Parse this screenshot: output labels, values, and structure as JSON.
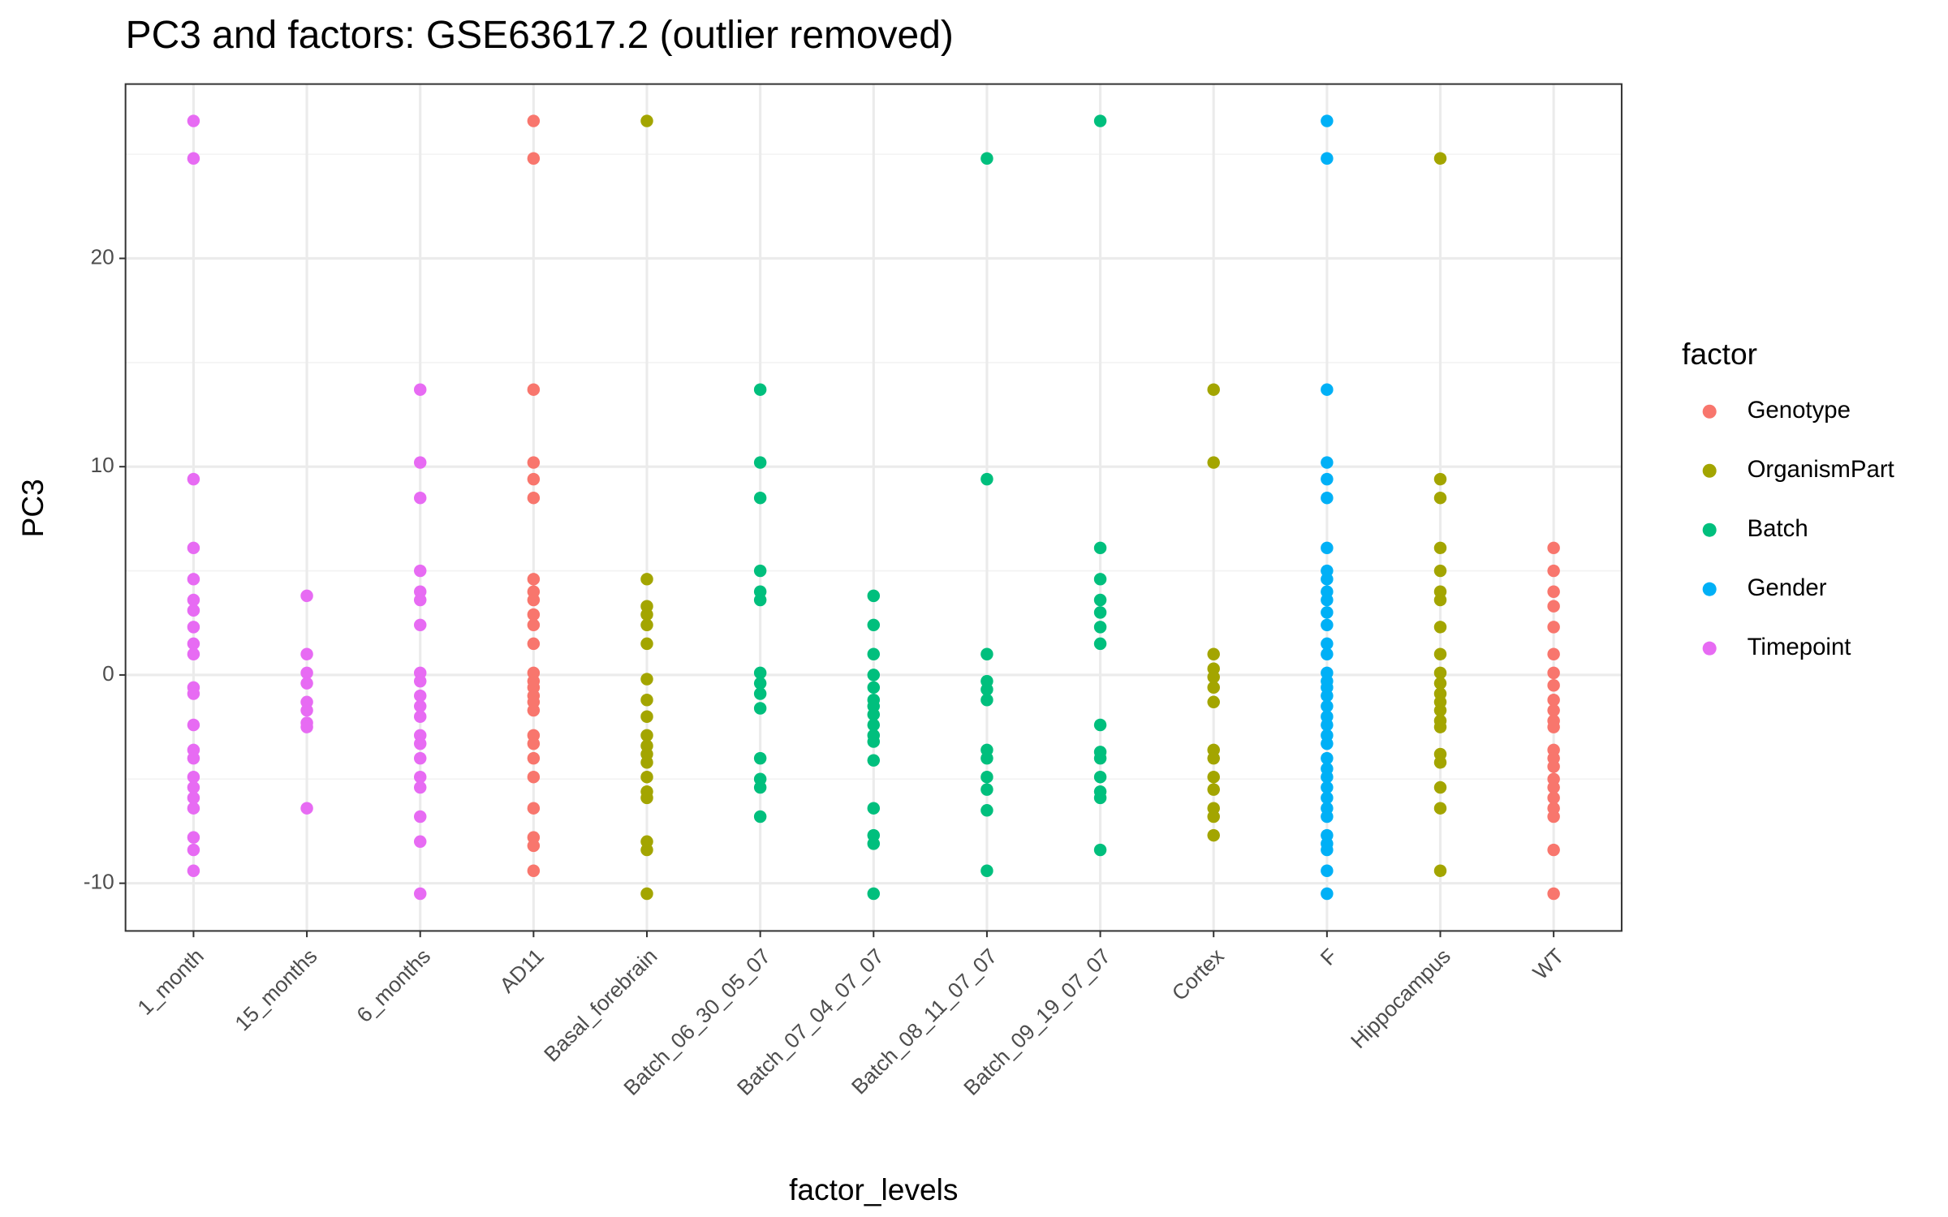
{
  "chart_data": {
    "type": "strip",
    "title": "PC3 and factors: GSE63617.2 (outlier removed)",
    "x_label": "factor_levels",
    "y_label": "PC3",
    "legend_title": "factor",
    "legend_position": "right",
    "grid": true,
    "categories": [
      "1_month",
      "15_months",
      "6_months",
      "AD11",
      "Basal_forebrain",
      "Batch_06_30_05_07",
      "Batch_07_04_07_07",
      "Batch_08_11_07_07",
      "Batch_09_19_07_07",
      "Cortex",
      "F",
      "Hippocampus",
      "WT"
    ],
    "ylim": [
      -12.29,
      28.37
    ],
    "yticks": [
      -10,
      0,
      10,
      20
    ],
    "y_minor_grid": [
      -5,
      5,
      15,
      25
    ],
    "series": [
      {
        "name": "Genotype",
        "color": "#f8766d",
        "categories": [
          "AD11",
          "WT"
        ],
        "values": [
          [
            26.6,
            24.8,
            13.7,
            10.2,
            9.4,
            8.5,
            4.6,
            4.0,
            3.6,
            2.9,
            2.4,
            1.5,
            0.1,
            -0.3,
            -0.6,
            -1.0,
            -1.3,
            -1.7,
            -2.9,
            -3.3,
            -4.0,
            -4.9,
            -6.4,
            -7.8,
            -8.2,
            -9.4
          ],
          [
            6.1,
            5.0,
            4.0,
            3.3,
            2.3,
            1.0,
            0.1,
            -0.5,
            -1.2,
            -1.7,
            -2.2,
            -2.5,
            -3.6,
            -4.0,
            -4.4,
            -5.0,
            -5.4,
            -5.9,
            -6.4,
            -6.8,
            -8.4,
            -10.5
          ]
        ]
      },
      {
        "name": "OrganismPart",
        "color": "#a3a500",
        "categories": [
          "Basal_forebrain",
          "Cortex",
          "Hippocampus"
        ],
        "values": [
          [
            26.6,
            4.6,
            3.3,
            2.9,
            2.4,
            1.5,
            -0.2,
            -1.2,
            -2.0,
            -2.9,
            -3.4,
            -3.8,
            -4.2,
            -4.9,
            -5.6,
            -5.9,
            -8.0,
            -8.4,
            -10.5
          ],
          [
            13.7,
            10.2,
            1.0,
            0.3,
            -0.1,
            -0.6,
            -1.3,
            -3.6,
            -4.0,
            -4.9,
            -5.5,
            -6.4,
            -6.8,
            -7.7
          ],
          [
            24.8,
            9.4,
            8.5,
            6.1,
            5.0,
            4.0,
            3.6,
            2.3,
            1.0,
            0.1,
            -0.4,
            -0.9,
            -1.3,
            -1.7,
            -2.2,
            -2.5,
            -3.8,
            -4.2,
            -5.4,
            -6.4,
            -9.4
          ]
        ]
      },
      {
        "name": "Batch",
        "color": "#00bf7d",
        "categories": [
          "Batch_06_30_05_07",
          "Batch_07_04_07_07",
          "Batch_08_11_07_07",
          "Batch_09_19_07_07"
        ],
        "values": [
          [
            13.7,
            10.2,
            8.5,
            5.0,
            4.0,
            3.6,
            0.1,
            -0.4,
            -0.9,
            -1.6,
            -4.0,
            -5.0,
            -5.4,
            -6.8
          ],
          [
            3.8,
            2.4,
            1.0,
            0.0,
            -0.6,
            -1.2,
            -1.5,
            -1.9,
            -2.4,
            -2.9,
            -3.2,
            -4.1,
            -6.4,
            -7.7,
            -8.1,
            -10.5
          ],
          [
            24.8,
            9.4,
            1.0,
            -0.3,
            -0.7,
            -1.2,
            -3.6,
            -4.0,
            -4.9,
            -5.5,
            -6.5,
            -9.4
          ],
          [
            26.6,
            6.1,
            4.6,
            3.6,
            3.0,
            2.3,
            1.5,
            -2.4,
            -3.7,
            -4.0,
            -4.9,
            -5.6,
            -5.9,
            -8.4
          ]
        ]
      },
      {
        "name": "Gender",
        "color": "#00b0f6",
        "categories": [
          "F"
        ],
        "values": [
          [
            26.6,
            24.8,
            13.7,
            10.2,
            9.4,
            8.5,
            6.1,
            5.0,
            4.6,
            4.0,
            3.6,
            3.0,
            2.4,
            1.5,
            1.0,
            0.1,
            -0.3,
            -0.6,
            -1.0,
            -1.5,
            -2.0,
            -2.4,
            -2.9,
            -3.3,
            -4.0,
            -4.5,
            -4.9,
            -5.4,
            -5.9,
            -6.4,
            -6.8,
            -7.7,
            -8.1,
            -8.4,
            -9.4,
            -10.5
          ]
        ]
      },
      {
        "name": "Timepoint",
        "color": "#e76bf3",
        "categories": [
          "1_month",
          "15_months",
          "6_months"
        ],
        "values": [
          [
            26.6,
            24.8,
            9.4,
            6.1,
            4.6,
            3.6,
            3.1,
            2.3,
            1.5,
            1.0,
            -0.6,
            -0.9,
            -2.4,
            -3.6,
            -4.0,
            -4.9,
            -5.4,
            -5.9,
            -6.4,
            -7.8,
            -8.4,
            -9.4
          ],
          [
            3.8,
            1.0,
            0.1,
            -0.4,
            -1.3,
            -1.7,
            -2.3,
            -2.5,
            -6.4
          ],
          [
            13.7,
            10.2,
            8.5,
            5.0,
            4.0,
            3.6,
            2.4,
            0.1,
            -0.3,
            -1.0,
            -1.5,
            -2.0,
            -2.9,
            -3.3,
            -4.0,
            -4.9,
            -5.4,
            -6.8,
            -8.0,
            -10.5
          ]
        ]
      }
    ]
  }
}
